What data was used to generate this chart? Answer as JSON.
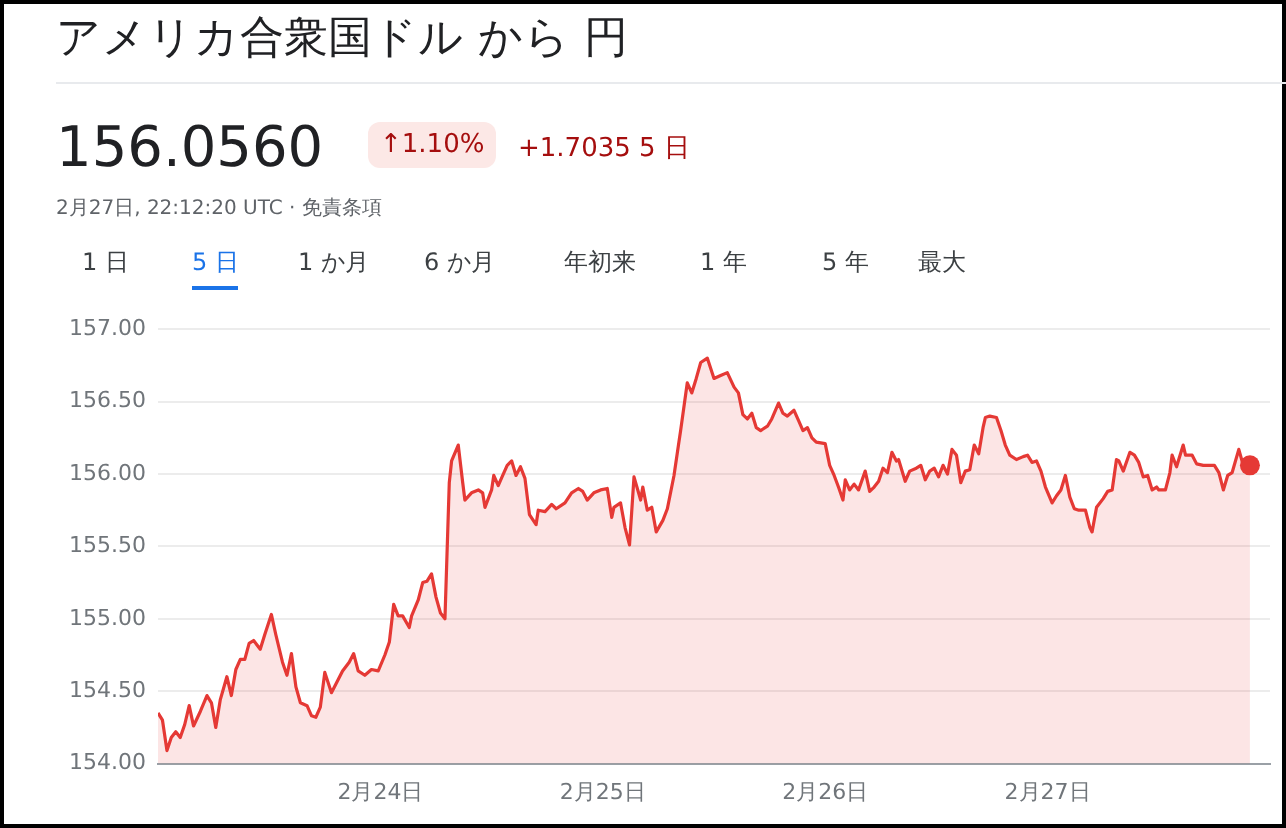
{
  "chart_data": {
    "type": "area",
    "title": "アメリカ合衆国ドル から 円",
    "subtitle": "156.0560",
    "annotations": [
      "↑1.10%",
      "+1.7035 5 日",
      "2月27日, 22:12:20 UTC · 免責条項",
      "1 日",
      "5 日",
      "1 か月",
      "6 か月",
      "年初来",
      "1 年",
      "5 年",
      "最大"
    ],
    "xlim": [
      "--02-23",
      "--02-28"
    ],
    "xticks": [
      {
        "value": "--02-24",
        "label": "2月24日"
      },
      {
        "value": "--02-25",
        "label": "2月25日"
      },
      {
        "value": "--02-26",
        "label": "2月26日"
      },
      {
        "value": "--02-27",
        "label": "2月27日"
      }
    ],
    "ylim": [
      154,
      157
    ],
    "yticks": [
      {
        "value": 154,
        "label": "154.00"
      },
      {
        "value": 154.5,
        "label": "154.50"
      },
      {
        "value": 155,
        "label": "155.00"
      },
      {
        "value": 155.5,
        "label": "155.50"
      },
      {
        "value": 156,
        "label": "156.00"
      },
      {
        "value": 156.5,
        "label": "156.50"
      },
      {
        "value": 157,
        "label": "157.00"
      }
    ],
    "grid": "y",
    "legend": false,
    "series": [
      {
        "color": "#e53935",
        "x": [
          "--02-23T00:00",
          "--02-23T00:29",
          "--02-23T00:58",
          "--02-23T01:26",
          "--02-23T01:55",
          "--02-23T02:24",
          "--02-23T02:53",
          "--02-23T03:22",
          "--02-23T03:50",
          "--02-23T04:34",
          "--02-23T05:17",
          "--02-23T05:46",
          "--02-23T06:14",
          "--02-23T06:43",
          "--02-23T07:26",
          "--02-23T07:55",
          "--02-23T08:24",
          "--02-23T08:53",
          "--02-23T09:22",
          "--02-23T09:50",
          "--02-23T10:19",
          "--02-23T11:02",
          "--02-23T11:31",
          "--02-23T12:14",
          "--02-23T12:43",
          "--02-23T13:26",
          "--02-23T13:55",
          "--02-23T14:24",
          "--02-23T14:53",
          "--02-23T15:22",
          "--02-23T16:05",
          "--02-23T16:34",
          "--02-23T17:02",
          "--02-23T17:31",
          "--02-23T18:00",
          "--02-23T18:43",
          "--02-23T19:12",
          "--02-23T19:55",
          "--02-23T20:38",
          "--02-23T21:07",
          "--02-23T21:36",
          "--02-23T22:19",
          "--02-23T23:02",
          "--02-23T23:46",
          "--02-24T00:29",
          "--02-24T00:58",
          "--02-24T01:26",
          "--02-24T01:55",
          "--02-24T02:24",
          "--02-24T03:07",
          "--02-24T03:22",
          "--02-24T04:05",
          "--02-24T04:34",
          "--02-24T05:02",
          "--02-24T05:31",
          "--02-24T06:00",
          "--02-24T06:29",
          "--02-24T06:58",
          "--02-24T07:26",
          "--02-24T07:41",
          "--02-24T08:24",
          "--02-24T08:53",
          "--02-24T09:07",
          "--02-24T09:50",
          "--02-24T10:34",
          "--02-24T11:02",
          "--02-24T11:17",
          "--02-24T12:00",
          "--02-24T12:14",
          "--02-24T12:43",
          "--02-24T13:12",
          "--02-24T13:41",
          "--02-24T14:10",
          "--02-24T14:38",
          "--02-24T15:07",
          "--02-24T15:36",
          "--02-24T16:05",
          "--02-24T16:48",
          "--02-24T17:02",
          "--02-24T17:46",
          "--02-24T18:29",
          "--02-24T18:58",
          "--02-24T19:55",
          "--02-24T20:38",
          "--02-24T21:22",
          "--02-24T21:50",
          "--02-24T22:19",
          "--02-24T23:02",
          "--02-24T23:46",
          "--02-25T00:29",
          "--02-25T00:58",
          "--02-25T01:12",
          "--02-25T01:55",
          "--02-25T02:24",
          "--02-25T02:53",
          "--02-25T03:22",
          "--02-25T04:05",
          "--02-25T04:19",
          "--02-25T04:48",
          "--02-25T05:17",
          "--02-25T05:46",
          "--02-25T06:29",
          "--02-25T06:58",
          "--02-25T07:41",
          "--02-25T08:10",
          "--02-25T08:24",
          "--02-25T09:07",
          "--02-25T09:36",
          "--02-25T10:05",
          "--02-25T10:34",
          "--02-25T11:17",
          "--02-25T12:00",
          "--02-25T12:43",
          "--02-25T13:26",
          "--02-25T14:10",
          "--02-25T14:38",
          "--02-25T15:07",
          "--02-25T15:36",
          "--02-25T16:05",
          "--02-25T16:34",
          "--02-25T17:02",
          "--02-25T17:46",
          "--02-25T18:14",
          "--02-25T18:58",
          "--02-25T19:26",
          "--02-25T19:55",
          "--02-25T20:38",
          "--02-25T21:07",
          "--02-25T21:36",
          "--02-25T22:05",
          "--02-25T22:34",
          "--02-25T23:02",
          "--02-26T00:00",
          "--02-26T00:29",
          "--02-26T00:58",
          "--02-26T01:26",
          "--02-26T01:55",
          "--02-26T02:10",
          "--02-26T02:38",
          "--02-26T03:07",
          "--02-26T03:36",
          "--02-26T04:19",
          "--02-26T04:48",
          "--02-26T05:17",
          "--02-26T05:46",
          "--02-26T06:14",
          "--02-26T06:43",
          "--02-26T07:12",
          "--02-26T07:41",
          "--02-26T07:55",
          "--02-26T08:38",
          "--02-26T09:07",
          "--02-26T09:50",
          "--02-26T10:19",
          "--02-26T10:48",
          "--02-26T11:17",
          "--02-26T11:46",
          "--02-26T12:14",
          "--02-26T12:43",
          "--02-26T13:12",
          "--02-26T13:41",
          "--02-26T14:10",
          "--02-26T14:38",
          "--02-26T15:07",
          "--02-26T15:36",
          "--02-26T16:05",
          "--02-26T16:34",
          "--02-26T17:02",
          "--02-26T17:17",
          "--02-26T17:46",
          "--02-26T18:29",
          "--02-26T18:58",
          "--02-26T19:26",
          "--02-26T19:55",
          "--02-26T20:38",
          "--02-26T21:22",
          "--02-26T21:50",
          "--02-26T22:19",
          "--02-26T22:48",
          "--02-26T23:17",
          "--02-26T23:46",
          "--02-27T00:29",
          "--02-27T00:58",
          "--02-27T01:26",
          "--02-27T01:55",
          "--02-27T02:24",
          "--02-27T02:53",
          "--02-27T03:22",
          "--02-27T04:05",
          "--02-27T04:34",
          "--02-27T04:48",
          "--02-27T05:17",
          "--02-27T06:00",
          "--02-27T06:29",
          "--02-27T06:58",
          "--02-27T07:26",
          "--02-27T07:41",
          "--02-27T08:10",
          "--02-27T08:53",
          "--02-27T09:22",
          "--02-27T09:50",
          "--02-27T10:19",
          "--02-27T10:48",
          "--02-27T11:17",
          "--02-27T11:46",
          "--02-27T12:00",
          "--02-27T12:43",
          "--02-27T13:12",
          "--02-27T13:26",
          "--02-27T13:55",
          "--02-27T14:38",
          "--02-27T14:53",
          "--02-27T15:36",
          "--02-27T16:05",
          "--02-27T16:48",
          "--02-27T17:17",
          "--02-27T18:00",
          "--02-27T18:29",
          "--02-27T18:58",
          "--02-27T19:26",
          "--02-27T19:55",
          "--02-27T20:38",
          "--02-27T21:07",
          "--02-27T21:50"
        ],
        "values": [
          154.35,
          154.3,
          154.09,
          154.18,
          154.22,
          154.18,
          154.27,
          154.4,
          154.26,
          154.36,
          154.47,
          154.42,
          154.25,
          154.44,
          154.6,
          154.47,
          154.65,
          154.72,
          154.72,
          154.83,
          154.85,
          154.79,
          154.89,
          155.03,
          154.89,
          154.7,
          154.61,
          154.76,
          154.53,
          154.42,
          154.4,
          154.33,
          154.32,
          154.39,
          154.63,
          154.49,
          154.55,
          154.64,
          154.7,
          154.76,
          154.64,
          154.61,
          154.65,
          154.64,
          154.75,
          154.84,
          155.1,
          155.02,
          155.02,
          154.94,
          155.02,
          155.13,
          155.25,
          155.26,
          155.31,
          155.15,
          155.04,
          155.0,
          155.94,
          156.09,
          156.2,
          155.94,
          155.82,
          155.87,
          155.89,
          155.87,
          155.77,
          155.89,
          155.99,
          155.92,
          155.99,
          156.06,
          156.09,
          155.99,
          156.05,
          155.97,
          155.72,
          155.65,
          155.75,
          155.74,
          155.79,
          155.76,
          155.8,
          155.87,
          155.9,
          155.88,
          155.82,
          155.87,
          155.89,
          155.9,
          155.7,
          155.77,
          155.8,
          155.63,
          155.51,
          155.98,
          155.82,
          155.91,
          155.75,
          155.77,
          155.6,
          155.68,
          155.76,
          155.99,
          156.2,
          156.3,
          156.63,
          156.56,
          156.66,
          156.77,
          156.8,
          156.66,
          156.68,
          156.7,
          156.6,
          156.56,
          156.41,
          156.38,
          156.42,
          156.32,
          156.3,
          156.33,
          156.38,
          156.49,
          156.42,
          156.4,
          156.44,
          156.37,
          156.3,
          156.32,
          156.25,
          156.22,
          156.21,
          156.06,
          155.99,
          155.91,
          155.82,
          155.96,
          155.89,
          155.93,
          155.89,
          156.02,
          155.88,
          155.91,
          155.95,
          156.04,
          156.01,
          156.15,
          156.09,
          156.1,
          155.95,
          156.02,
          156.04,
          156.06,
          155.96,
          156.02,
          156.04,
          155.98,
          156.06,
          156.0,
          156.17,
          156.13,
          155.94,
          156.02,
          156.03,
          156.2,
          156.14,
          156.32,
          156.39,
          156.4,
          156.39,
          156.3,
          156.2,
          156.13,
          156.1,
          156.12,
          156.13,
          156.08,
          156.09,
          156.02,
          155.91,
          155.8,
          155.85,
          155.89,
          155.99,
          155.84,
          155.76,
          155.75,
          155.75,
          155.63,
          155.6,
          155.77,
          155.83,
          155.88,
          155.89,
          156.1,
          156.09,
          156.02,
          156.15,
          156.13,
          156.08,
          155.98,
          155.99,
          155.89,
          155.91,
          155.89,
          155.89,
          156.01,
          156.13,
          156.05,
          156.2,
          156.13,
          156.13,
          156.07,
          156.06,
          156.06,
          156.06,
          156.01,
          155.89,
          155.99,
          156.01,
          156.17,
          156.06,
          156.06
        ]
      }
    ]
  }
}
